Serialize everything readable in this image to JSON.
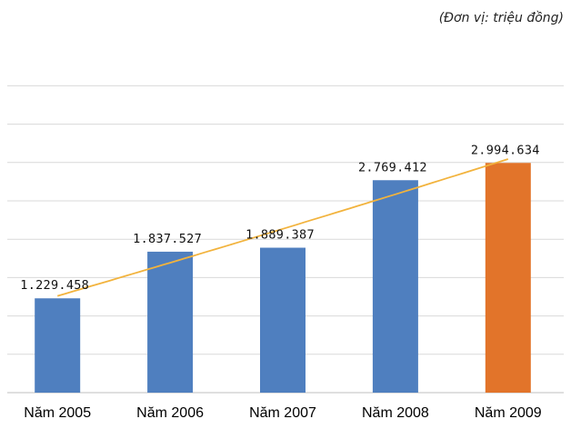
{
  "unit_note": "(Đơn vị: triệu đồng)",
  "colors": {
    "bar": "#4f7fbf",
    "bar_highlight": "#e2742a",
    "trend": "#f2b33d",
    "grid": "#d9d9d9"
  },
  "chart_data": {
    "type": "bar",
    "categories": [
      "Năm 2005",
      "Năm 2006",
      "Năm 2007",
      "Năm 2008",
      "Năm 2009"
    ],
    "values": [
      1229458,
      1837527,
      1889387,
      2769412,
      2994634
    ],
    "data_labels": [
      "1.229.458",
      "1.837.527",
      "1.889.387",
      "2.769.412",
      "2.994.634"
    ],
    "highlight_index": 4,
    "trendline": "polynomial",
    "title": "",
    "xlabel": "",
    "ylabel": "",
    "ylim": [
      0,
      4000000
    ],
    "grid": true,
    "legend": "none"
  }
}
